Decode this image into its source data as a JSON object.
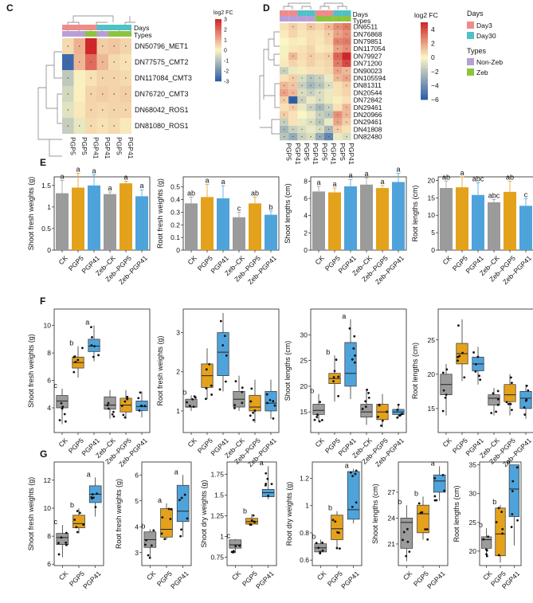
{
  "colors": {
    "ck": "#9b9b9b",
    "pgp5": "#e4a11b",
    "pgp41": "#4fa3db",
    "day3": "#f08b8b",
    "day30": "#4fc1c7",
    "nonzeb": "#b79fd6",
    "zeb": "#8cc43f",
    "heat_low": "#2f5fa8",
    "heat_mid": "#fbf6c4",
    "heat_high": "#d0272a"
  },
  "chart_data": [
    {
      "id": "C",
      "type": "heatmap",
      "panel_label": "C",
      "annotation_labels": [
        "Days",
        "Types"
      ],
      "rows": [
        "DN50796_MET1",
        "DN77575_CMT2",
        "DN117084_CMT3",
        "DN76720_CMT3",
        "DN68042_ROS1",
        "DN81080_ROS1"
      ],
      "columns": [
        "PGP5",
        "PGP5",
        "PGP41",
        "PGP41",
        "PGP5",
        "PGP41"
      ],
      "days": [
        "Day3",
        "Day3",
        "Day3",
        "Day30",
        "Day30",
        "Day30"
      ],
      "types": [
        "Non-Zeb",
        "Non-Zeb",
        "Zeb",
        "Non-Zeb",
        "Zeb",
        "Zeb"
      ],
      "values": [
        [
          0.4,
          1.0,
          3.0,
          0.6,
          0.7,
          0.5
        ],
        [
          -2.8,
          0.9,
          2.0,
          0.9,
          0.4,
          0.3
        ],
        [
          -0.9,
          0.1,
          0.3,
          0.5,
          0.5,
          0.4
        ],
        [
          -0.6,
          0.1,
          0.5,
          0.6,
          0.5,
          0.6
        ],
        [
          -0.4,
          0.2,
          0.5,
          0.4,
          0.5,
          0.5
        ],
        [
          -0.8,
          -0.3,
          0.4,
          0.3,
          0.4,
          0.2
        ]
      ],
      "legend_title": "log2 FC",
      "legend_ticks": [
        3,
        2,
        1,
        0,
        -1,
        -2,
        -3
      ],
      "range": [
        -3,
        3
      ]
    },
    {
      "id": "D",
      "type": "heatmap",
      "panel_label": "D",
      "annotation_labels": [
        "Days",
        "Types"
      ],
      "rows": [
        "DN6511",
        "DN76868",
        "DN79851",
        "DN117054",
        "DN79927",
        "DN71200",
        "DN90023",
        "DN105594",
        "DN81311",
        "DN20544",
        "DN72842",
        "DN29461",
        "DN20966",
        "DN29461",
        "DN41808",
        "DN82480"
      ],
      "columns": [
        "PGP5",
        "PGP41",
        "PGP5",
        "PGP41",
        "PGP5",
        "PGP41",
        "PGP5",
        "PGP41"
      ],
      "days": [
        "Day3",
        "Day3",
        "Day30",
        "Day30",
        "Day3",
        "Day3",
        "Day30",
        "Day30"
      ],
      "types": [
        "Non-Zeb",
        "Non-Zeb",
        "Non-Zeb",
        "Non-Zeb",
        "Zeb",
        "Zeb",
        "Zeb",
        "Zeb"
      ],
      "values": [
        [
          0.5,
          1.0,
          0.5,
          1.2,
          0.8,
          1.5,
          2.5,
          3.0
        ],
        [
          0.3,
          0.8,
          0.4,
          0.6,
          0.5,
          1.0,
          2.0,
          2.5
        ],
        [
          0.0,
          0.3,
          0.2,
          0.6,
          0.4,
          0.8,
          2.8,
          3.0
        ],
        [
          -0.2,
          0.4,
          0.5,
          0.8,
          0.3,
          0.5,
          2.0,
          2.5
        ],
        [
          0.2,
          1.5,
          0.6,
          1.0,
          0.7,
          1.0,
          3.5,
          5.0
        ],
        [
          0.3,
          0.8,
          0.5,
          0.9,
          0.6,
          0.8,
          3.0,
          4.2
        ],
        [
          -1.5,
          -0.5,
          0.3,
          0.5,
          0.5,
          0.7,
          2.0,
          1.5
        ],
        [
          0.5,
          1.0,
          -1.0,
          -2.0,
          -1.5,
          -0.5,
          1.5,
          2.0
        ],
        [
          1.5,
          1.2,
          -1.5,
          -2.5,
          -2.0,
          -1.0,
          0.5,
          1.0
        ],
        [
          2.0,
          1.5,
          -1.0,
          -1.5,
          -1.0,
          -0.5,
          0.5,
          0.8
        ],
        [
          1.0,
          -6.0,
          -1.5,
          -0.5,
          -1.0,
          -0.5,
          0.2,
          0.5
        ],
        [
          0.5,
          1.0,
          -0.5,
          -1.5,
          -2.5,
          -1.5,
          0.5,
          1.5
        ],
        [
          1.0,
          0.5,
          0.0,
          -0.5,
          -1.5,
          -2.0,
          2.5,
          1.5
        ],
        [
          -1.5,
          0.5,
          -0.5,
          -1.0,
          -2.0,
          -0.5,
          2.0,
          1.0
        ],
        [
          -2.5,
          -1.5,
          -1.0,
          -0.5,
          -1.0,
          -2.5,
          1.0,
          0.5
        ],
        [
          -2.0,
          -3.0,
          -1.5,
          -1.0,
          -3.0,
          -4.5,
          -0.5,
          -1.0
        ]
      ],
      "legend_title": "log2 FC",
      "legend_ticks": [
        4,
        2,
        0,
        -2,
        -4,
        -6
      ],
      "range": [
        -6,
        5
      ],
      "legend_days_title": "Days",
      "legend_days": [
        "Day3",
        "Day30"
      ],
      "legend_types_title": "Types",
      "legend_types": [
        "Non-Zeb",
        "Zeb"
      ]
    },
    {
      "id": "E",
      "type": "bar",
      "panel_label": "E",
      "categories": [
        "CK",
        "PGP5",
        "PGP41",
        "Zeb-CK",
        "Zeb-PGP5",
        "Zeb-PGP41"
      ],
      "group_colors": [
        "ck",
        "pgp5",
        "pgp41",
        "ck",
        "pgp5",
        "pgp41"
      ],
      "panels": [
        {
          "ylabel": "Shoot fresh weights (g)",
          "ylim": [
            0,
            1.7
          ],
          "yticks": [
            0,
            0.5,
            1.0,
            1.5
          ],
          "values": [
            1.32,
            1.45,
            1.5,
            1.3,
            1.55,
            1.25
          ],
          "errors": [
            0.3,
            0.33,
            0.25,
            0.05,
            0.05,
            0.15
          ],
          "letters": [
            "a",
            "a",
            "a",
            "a",
            "a",
            "a"
          ]
        },
        {
          "ylabel": "Root fresh weights (g)",
          "ylim": [
            0,
            0.58
          ],
          "yticks": [
            0,
            0.1,
            0.2,
            0.3,
            0.4,
            0.5
          ],
          "values": [
            0.37,
            0.42,
            0.41,
            0.26,
            0.37,
            0.28
          ],
          "errors": [
            0.05,
            0.1,
            0.1,
            0.04,
            0.05,
            0.03
          ],
          "letters": [
            "ab",
            "a",
            "a",
            "c",
            "ab",
            "b"
          ]
        },
        {
          "ylabel": "Shoot lengths (cm)",
          "ylim": [
            0,
            8.5
          ],
          "yticks": [
            0,
            2,
            4,
            6,
            8
          ],
          "values": [
            6.8,
            6.7,
            7.4,
            7.6,
            7.2,
            7.9
          ],
          "errors": [
            0.6,
            0.5,
            0.8,
            0.8,
            0.3,
            1.0
          ],
          "letters": [
            "a",
            "a",
            "a",
            "a",
            "a",
            "a"
          ]
        },
        {
          "ylabel": "Root lengths (cm)",
          "ylim": [
            0,
            21
          ],
          "yticks": [
            0,
            5,
            10,
            15,
            20
          ],
          "values": [
            17.8,
            18.0,
            15.8,
            13.7,
            16.7,
            12.7
          ],
          "errors": [
            2.0,
            3.0,
            3.5,
            0.8,
            3.0,
            2.0
          ],
          "letters": [
            "ab",
            "a",
            "abc",
            "abc",
            "ab",
            "c"
          ]
        }
      ]
    },
    {
      "id": "F",
      "type": "box",
      "panel_label": "F",
      "categories": [
        "CK",
        "PGP5",
        "PGP41",
        "Zeb-CK",
        "Zeb-PGP5",
        "Zeb-PGP41"
      ],
      "group_colors": [
        "ck",
        "pgp5",
        "pgp41",
        "ck",
        "pgp5",
        "pgp41"
      ],
      "panels": [
        {
          "ylabel": "Shoot fresh weights (g)",
          "ylim": [
            2.2,
            11.2
          ],
          "yticks": [
            4,
            6,
            8,
            10
          ],
          "boxes": [
            [
              2.8,
              4.0,
              4.5,
              4.9,
              5.4
            ],
            [
              6.2,
              6.9,
              7.3,
              7.7,
              8.5
            ],
            [
              7.4,
              8.1,
              8.5,
              9.0,
              10.0
            ],
            [
              3.2,
              3.9,
              4.2,
              4.8,
              5.3
            ],
            [
              3.2,
              3.7,
              4.2,
              4.7,
              5.3
            ],
            [
              3.3,
              3.8,
              4.1,
              4.5,
              5.2
            ]
          ],
          "letters": [
            "c",
            "b",
            "a",
            "",
            "",
            ""
          ]
        },
        {
          "ylabel": "Root fresh weights (g)",
          "ylim": [
            0.45,
            3.6
          ],
          "yticks": [
            1,
            2,
            3
          ],
          "boxes": [
            [
              1.0,
              1.1,
              1.1,
              1.3,
              1.4
            ],
            [
              1.3,
              1.6,
              1.9,
              2.2,
              2.6
            ],
            [
              1.5,
              1.9,
              2.5,
              3.0,
              3.5
            ],
            [
              1.0,
              1.1,
              1.3,
              1.5,
              1.9
            ],
            [
              0.7,
              1.0,
              1.1,
              1.4,
              1.8
            ],
            [
              0.8,
              1.0,
              1.2,
              1.5,
              1.8
            ]
          ],
          "letters": [
            "b",
            "",
            "",
            "",
            "",
            ""
          ]
        },
        {
          "ylabel": "Shoot lengths (cm)",
          "ylim": [
            11,
            35
          ],
          "yticks": [
            15,
            20,
            25,
            30
          ],
          "boxes": [
            [
              13.0,
              14.5,
              15.3,
              16.5,
              18.5
            ],
            [
              17.0,
              20.5,
              21.5,
              22.5,
              26.0
            ],
            [
              17.5,
              20.0,
              22.5,
              28.5,
              33.0
            ],
            [
              12.5,
              14.0,
              15.0,
              16.5,
              19.5
            ],
            [
              12.0,
              13.5,
              15.0,
              16.5,
              18.5
            ],
            [
              13.8,
              14.5,
              15.0,
              15.5,
              16.5
            ]
          ],
          "letters": [
            "b",
            "b",
            "a",
            "",
            "",
            ""
          ]
        },
        {
          "ylabel": "Root lengths (cm)",
          "ylim": [
            11.5,
            29.5
          ],
          "yticks": [
            15,
            20,
            25
          ],
          "boxes": [
            [
              14.0,
              17.0,
              18.5,
              20.0,
              21.5
            ],
            [
              19.0,
              21.5,
              23.0,
              24.5,
              28.0
            ],
            [
              18.5,
              20.5,
              21.5,
              22.5,
              24.0
            ],
            [
              14.0,
              15.5,
              16.5,
              17.0,
              18.0
            ],
            [
              14.0,
              16.0,
              17.0,
              18.5,
              20.0
            ],
            [
              13.5,
              15.0,
              16.5,
              17.5,
              18.5
            ]
          ],
          "letters": [
            "",
            "",
            "",
            "",
            "",
            ""
          ]
        }
      ]
    },
    {
      "id": "G",
      "type": "box",
      "panel_label": "G",
      "categories": [
        "CK",
        "PGP5",
        "PGP41"
      ],
      "group_colors": [
        "ck",
        "pgp5",
        "pgp41"
      ],
      "panels": [
        {
          "ylabel": "Shoot fresh weights (g)",
          "ylim": [
            5.9,
            13.3
          ],
          "yticks": [
            6,
            8,
            10,
            12
          ],
          "boxes": [
            [
              6.5,
              7.4,
              7.9,
              8.2,
              8.8
            ],
            [
              8.2,
              8.6,
              8.9,
              9.5,
              10.0
            ],
            [
              9.4,
              10.4,
              11.0,
              11.6,
              12.2
            ]
          ],
          "letters": [
            "c",
            "b",
            "a"
          ]
        },
        {
          "ylabel": "Root fresh weights (g)",
          "ylim": [
            2.5,
            6.5
          ],
          "yticks": [
            3,
            4,
            5,
            6
          ],
          "boxes": [
            [
              2.8,
              3.2,
              3.5,
              3.8,
              3.9
            ],
            [
              3.5,
              3.6,
              3.9,
              4.7,
              4.9
            ],
            [
              3.6,
              4.2,
              4.6,
              5.6,
              6.0
            ]
          ],
          "letters": [
            "b",
            "a",
            "a"
          ]
        },
        {
          "ylabel": "Shoot dry weights (g)",
          "ylim": [
            0.65,
            1.9
          ],
          "yticks": [
            0.75,
            1.0,
            1.25,
            1.5,
            1.75
          ],
          "boxes": [
            [
              0.8,
              0.86,
              0.9,
              0.96,
              0.97
            ],
            [
              1.13,
              1.15,
              1.18,
              1.22,
              1.27
            ],
            [
              1.45,
              1.48,
              1.53,
              1.57,
              1.85
            ]
          ],
          "letters": [
            "c",
            "b",
            "a"
          ]
        },
        {
          "ylabel": "Root dry weights (g)",
          "ylim": [
            0.56,
            1.32
          ],
          "yticks": [
            0.6,
            0.8,
            1.0,
            1.2
          ],
          "boxes": [
            [
              0.65,
              0.66,
              0.69,
              0.72,
              0.75
            ],
            [
              0.68,
              0.75,
              0.83,
              0.93,
              0.96
            ],
            [
              0.87,
              0.9,
              0.97,
              1.25,
              1.27
            ]
          ],
          "letters": [
            "b",
            "b",
            "a"
          ]
        },
        {
          "ylabel": "Shoot lengths (cm)",
          "ylim": [
            18.5,
            30.5
          ],
          "yticks": [
            21,
            24,
            27
          ],
          "boxes": [
            [
              19.0,
              20.5,
              23.5,
              24.0,
              25.5
            ],
            [
              21.5,
              22.3,
              24.5,
              25.5,
              26.5
            ],
            [
              26.0,
              27.0,
              28.3,
              29.0,
              30.0
            ]
          ],
          "letters": [
            "b",
            "b",
            "a"
          ]
        },
        {
          "ylabel": "Root lengths (cm)",
          "ylim": [
            17.5,
            35.5
          ],
          "yticks": [
            20,
            25,
            30,
            35
          ],
          "boxes": [
            [
              19.0,
              20.5,
              22.0,
              22.5,
              24.0
            ],
            [
              18.0,
              19.2,
              23.0,
              27.5,
              28.0
            ],
            [
              21.0,
              26.0,
              30.8,
              35.0,
              35.0
            ]
          ],
          "letters": [
            "b",
            "b",
            "a"
          ]
        }
      ]
    }
  ]
}
